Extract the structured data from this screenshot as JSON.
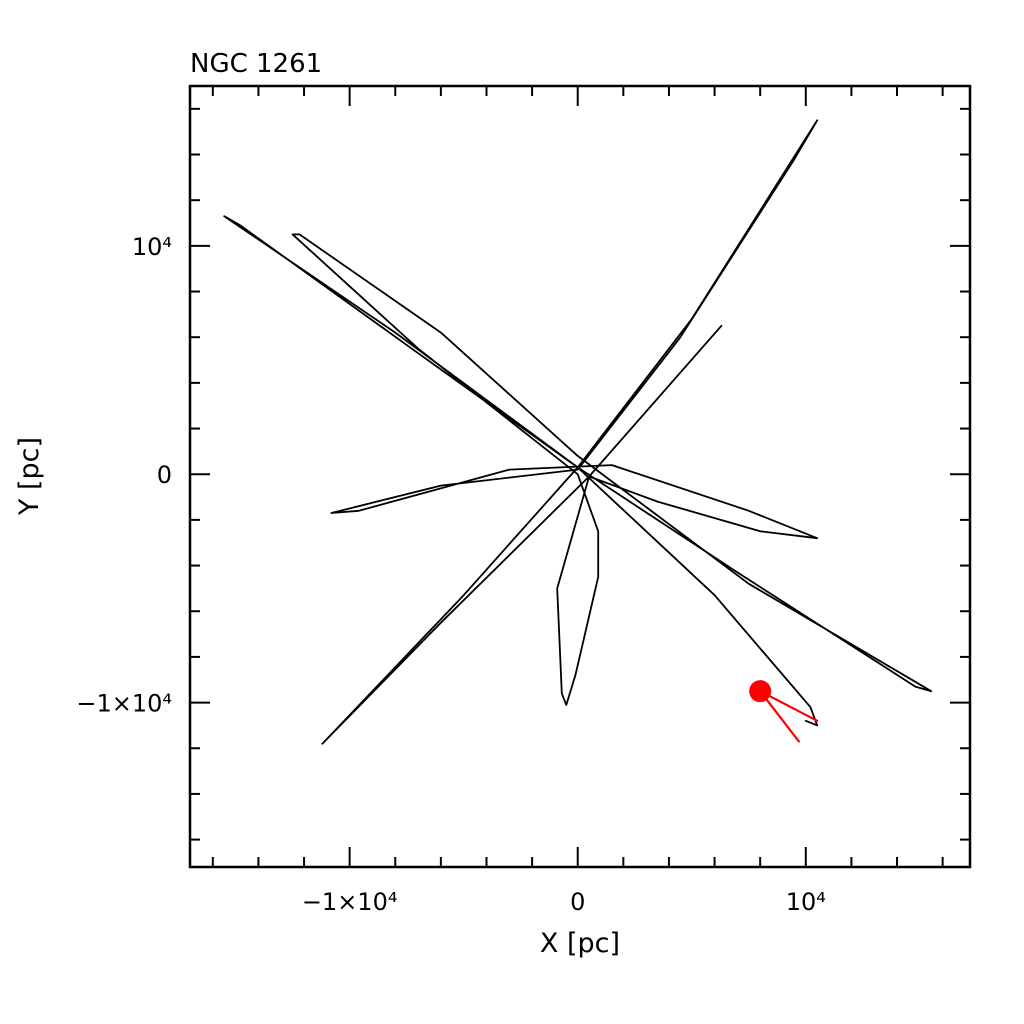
{
  "chart_data": {
    "type": "line",
    "title": "NGC 1261",
    "xlabel": "X [pc]",
    "ylabel": "Y [pc]",
    "xlim": [
      -17000,
      17200
    ],
    "ylim": [
      -17200,
      17000
    ],
    "grid": false,
    "x_tick_labels": [
      {
        "value": -10000,
        "text": "−1×10⁴"
      },
      {
        "value": 0,
        "text": "0"
      },
      {
        "value": 10000,
        "text": "10⁴"
      }
    ],
    "y_tick_labels": [
      {
        "value": 10000,
        "text": "10⁴"
      },
      {
        "value": 0,
        "text": "0"
      },
      {
        "value": -10000,
        "text": "−1×10⁴"
      }
    ],
    "series": [
      {
        "color": "#000000",
        "points": [
          [
            6300,
            6500
          ],
          [
            500,
            -100
          ],
          [
            -6000,
            -6500
          ],
          [
            -11200,
            -11800
          ],
          [
            -11000,
            -11600
          ],
          [
            -5000,
            -5300
          ],
          [
            0,
            300
          ],
          [
            5000,
            6800
          ],
          [
            10500,
            15500
          ],
          [
            9500,
            13800
          ],
          [
            4500,
            6000
          ],
          [
            0,
            200
          ],
          [
            -6000,
            -500
          ],
          [
            -10800,
            -1700
          ],
          [
            -9600,
            -1600
          ],
          [
            -3000,
            200
          ],
          [
            1500,
            400
          ],
          [
            7500,
            -1600
          ],
          [
            10500,
            -2800
          ],
          [
            8000,
            -2500
          ],
          [
            3500,
            -1200
          ],
          [
            500,
            -100
          ],
          [
            -900,
            -5000
          ],
          [
            -700,
            -9600
          ],
          [
            -500,
            -10100
          ],
          [
            -100,
            -8800
          ],
          [
            900,
            -4500
          ],
          [
            900,
            -2500
          ],
          [
            0,
            0
          ],
          [
            -7000,
            5500
          ],
          [
            -12500,
            10500
          ],
          [
            -12200,
            10500
          ],
          [
            -6000,
            6200
          ],
          [
            0,
            800
          ],
          [
            7500,
            -4800
          ],
          [
            15500,
            -9500
          ],
          [
            14800,
            -9300
          ],
          [
            7000,
            -4300
          ],
          [
            0,
            300
          ],
          [
            -8000,
            6200
          ],
          [
            -15500,
            11300
          ],
          [
            -14800,
            10900
          ],
          [
            -7000,
            5300
          ],
          [
            0,
            300
          ],
          [
            6000,
            -5300
          ],
          [
            10200,
            -10200
          ],
          [
            10500,
            -11000
          ],
          [
            10000,
            -10800
          ]
        ]
      },
      {
        "color": "#ff0000",
        "points": [
          [
            8000,
            -9500
          ],
          [
            10500,
            -10800
          ]
        ]
      },
      {
        "color": "#ff0000",
        "points": [
          [
            8000,
            -9500
          ],
          [
            9700,
            -11700
          ]
        ]
      }
    ],
    "markers": [
      {
        "x": 8000,
        "y": -9500,
        "color": "#ff0000"
      }
    ]
  }
}
